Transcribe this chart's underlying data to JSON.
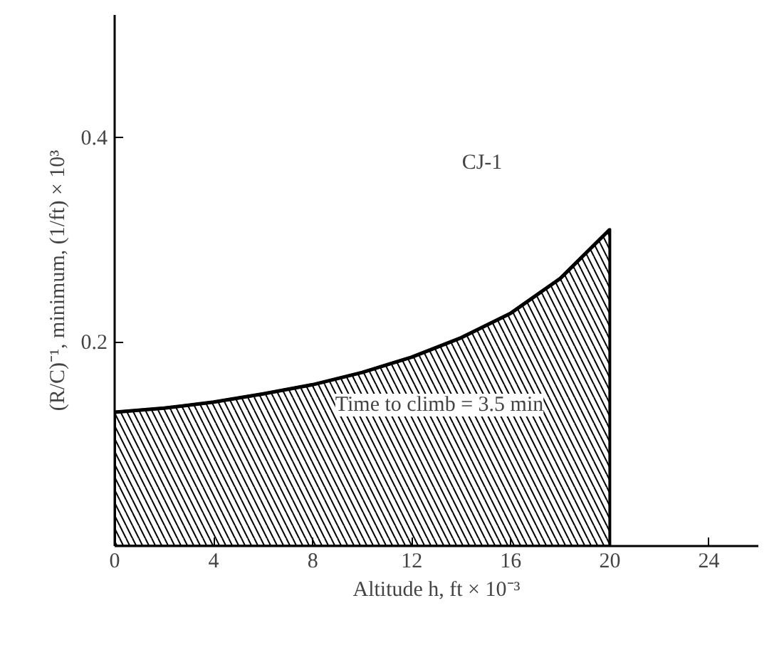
{
  "chart_data": {
    "type": "area",
    "xlabel": "Altitude h, ft × 10⁻³",
    "ylabel": "(R/C)⁻¹, minimum, (1/ft) × 10³",
    "x": [
      0,
      2,
      4,
      6,
      8,
      10,
      12,
      14,
      16,
      18,
      20
    ],
    "series": [
      {
        "color": "#000000",
        "values": [
          0.131,
          0.135,
          0.141,
          0.149,
          0.158,
          0.17,
          0.185,
          0.204,
          0.228,
          0.262,
          0.31
        ]
      }
    ],
    "xlim": [
      0,
      26
    ],
    "ylim": [
      0,
      0.52
    ],
    "xticks": [
      0,
      4,
      8,
      12,
      16,
      20,
      24
    ],
    "yticks": [
      0.2,
      0.4
    ],
    "grid": false,
    "annotations": [
      "CJ-1",
      "Time to climb = 3.5 min"
    ]
  }
}
